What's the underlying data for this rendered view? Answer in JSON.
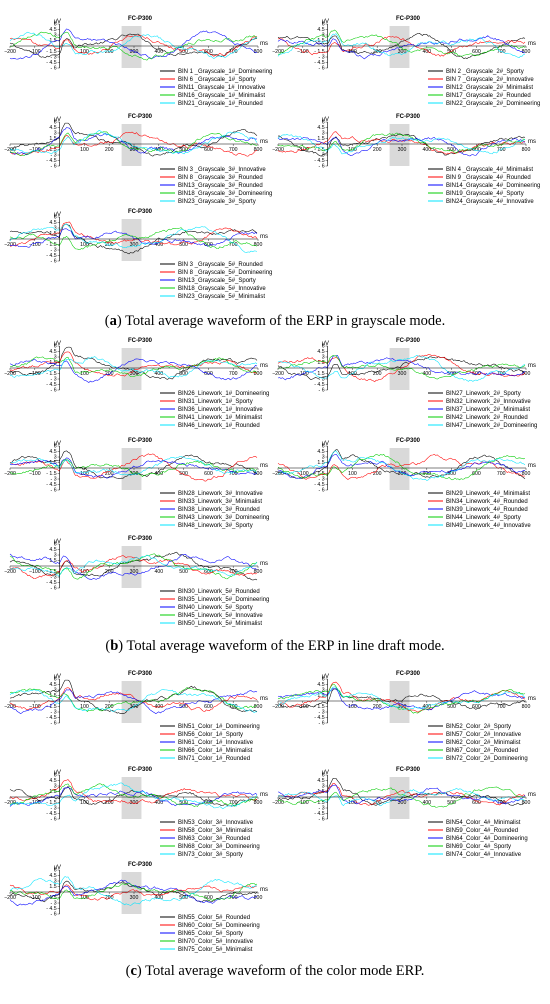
{
  "colors": {
    "series": [
      "#000000",
      "#ff0000",
      "#0000ff",
      "#00cc00",
      "#00e5ff"
    ],
    "highlight": "#d9d9d9"
  },
  "captions": [
    {
      "letter": "a",
      "text": " Total average waveform of the ERP in grayscale mode."
    },
    {
      "letter": "b",
      "text": " Total average waveform of the ERP in line draft mode."
    },
    {
      "letter": "c",
      "text": " Total average waveform of the color mode ERP."
    }
  ],
  "chart_data": [
    {
      "type": "line",
      "group": "a",
      "title": "FC-P300",
      "ylabel": "μV",
      "xlabel": "ms",
      "xlim": [
        -200,
        800
      ],
      "ylim": [
        -6,
        6
      ],
      "x_ticks": [
        -200,
        -100,
        100,
        200,
        300,
        400,
        500,
        600,
        700,
        800
      ],
      "y_ticks": [
        6,
        4.5,
        3,
        1.5,
        -1.5,
        -3,
        -4.5,
        -6
      ],
      "highlight_x": [
        250,
        330
      ],
      "legend": [
        "BIN 1 _Grayscale_1#_Domineering",
        "BIN 6 _Grayscale_1#_Sporty",
        "BIN11_Grayscale_1#_Innovative",
        "BIN16_Grayscale_1#_Minimalist",
        "BIN21_Grayscale_1#_Rounded"
      ]
    },
    {
      "type": "line",
      "group": "a",
      "title": "FC-P300",
      "ylabel": "μV",
      "xlabel": "ms",
      "xlim": [
        -200,
        800
      ],
      "ylim": [
        -6,
        6
      ],
      "x_ticks": [
        -200,
        -100,
        100,
        200,
        300,
        400,
        500,
        600,
        700,
        800
      ],
      "y_ticks": [
        6,
        4.5,
        3,
        1.5,
        -1.5,
        -3,
        -4.5,
        -6
      ],
      "highlight_x": [
        250,
        330
      ],
      "legend": [
        "BIN 2 _Grayscale_2#_Sporty",
        "BIN 7 _Grayscale_2#_Innovative",
        "BIN12_Grayscale_2#_Minimalist",
        "BIN17_Grayscale_2#_Rounded",
        "BIN22_Grayscale_2#_Domineering"
      ]
    },
    {
      "type": "line",
      "group": "a",
      "title": "FC-P300",
      "ylabel": "μV",
      "xlabel": "ms",
      "xlim": [
        -200,
        800
      ],
      "ylim": [
        -6,
        6
      ],
      "x_ticks": [
        -200,
        -100,
        100,
        200,
        300,
        400,
        500,
        600,
        700,
        800
      ],
      "y_ticks": [
        6,
        4.5,
        3,
        1.5,
        -1.5,
        -3,
        -4.5,
        -6
      ],
      "highlight_x": [
        250,
        330
      ],
      "legend": [
        "BIN 3 _Grayscale_3#_Innovative",
        "BIN 8 _Grayscale_3#_Rounded",
        "BIN13_Grayscale_3#_Rounded",
        "BIN18_Grayscale_3#_Domineering",
        "BIN23_Grayscale_3#_Sporty"
      ]
    },
    {
      "type": "line",
      "group": "a",
      "title": "FC-P300",
      "ylabel": "μV",
      "xlabel": "ms",
      "xlim": [
        -200,
        800
      ],
      "ylim": [
        -6,
        6
      ],
      "x_ticks": [
        -200,
        -100,
        100,
        200,
        300,
        400,
        500,
        600,
        700,
        800
      ],
      "y_ticks": [
        6,
        4.5,
        3,
        1.5,
        -1.5,
        -3,
        -4.5,
        -6
      ],
      "highlight_x": [
        250,
        330
      ],
      "legend": [
        "BIN 4 _Grayscale_4#_Minimalist",
        "BIN 9 _Grayscale_4#_Rounded",
        "BIN14_Grayscale_4#_Domineering",
        "BIN19_Grayscale_4#_Sporty",
        "BIN24_Grayscale_4#_Innovative"
      ]
    },
    {
      "type": "line",
      "group": "a",
      "title": "FC-P300",
      "ylabel": "μV",
      "xlabel": "ms",
      "xlim": [
        -200,
        800
      ],
      "ylim": [
        -6,
        6
      ],
      "x_ticks": [
        -200,
        -100,
        100,
        200,
        300,
        400,
        500,
        600,
        700,
        800
      ],
      "y_ticks": [
        6,
        4.5,
        3,
        1.5,
        -1.5,
        -3,
        -4.5,
        -6
      ],
      "highlight_x": [
        250,
        330
      ],
      "legend": [
        "BIN 3 _Grayscale_5#_Rounded",
        "BIN 8 _Grayscale_5#_Domineering",
        "BIN13_Grayscale_5#_Sporty",
        "BIN18_Grayscale_5#_Innovative",
        "BIN23_Grayscale_5#_Minimalist"
      ]
    },
    {
      "type": "line",
      "group": "b",
      "title": "FC-P300",
      "ylabel": "μV",
      "xlabel": "ms",
      "xlim": [
        -200,
        800
      ],
      "ylim": [
        -6,
        6
      ],
      "x_ticks": [
        -200,
        -100,
        100,
        200,
        300,
        400,
        500,
        600,
        700,
        800
      ],
      "y_ticks": [
        6,
        4.5,
        3,
        1.5,
        -1.5,
        -3,
        -4.5,
        -6
      ],
      "highlight_x": [
        250,
        330
      ],
      "legend": [
        "BIN26_Linework_1#_Domineering",
        "BIN31_Linework_1#_Sporty",
        "BIN36_Linework_1#_Innovative",
        "BIN41_Linework_1#_Minimalist",
        "BIN46_Linework_1#_Rounded"
      ]
    },
    {
      "type": "line",
      "group": "b",
      "title": "FC-P300",
      "ylabel": "μV",
      "xlabel": "ms",
      "xlim": [
        -200,
        800
      ],
      "ylim": [
        -6,
        6
      ],
      "x_ticks": [
        -200,
        -100,
        100,
        200,
        300,
        400,
        500,
        600,
        700,
        800
      ],
      "y_ticks": [
        6,
        4.5,
        3,
        1.5,
        -1.5,
        -3,
        -4.5,
        -6
      ],
      "highlight_x": [
        250,
        330
      ],
      "legend": [
        "BIN27_Linework_2#_Sporty",
        "BIN32_Linework_2#_Innovative",
        "BIN37_Linework_2#_Minimalist",
        "BIN42_Linework_2#_Rounded",
        "BIN47_Linework_2#_Domineering"
      ]
    },
    {
      "type": "line",
      "group": "b",
      "title": "FC-P300",
      "ylabel": "μV",
      "xlabel": "ms",
      "xlim": [
        -200,
        800
      ],
      "ylim": [
        -6,
        6
      ],
      "x_ticks": [
        -200,
        -100,
        100,
        200,
        300,
        400,
        500,
        600,
        700,
        800
      ],
      "y_ticks": [
        6,
        4.5,
        3,
        1.5,
        -1.5,
        -3,
        -4.5,
        -6
      ],
      "highlight_x": [
        250,
        330
      ],
      "legend": [
        "BIN28_Linework_3#_Innovative",
        "BIN33_Linework_3#_Minimalist",
        "BIN38_Linework_3#_Rounded",
        "BIN43_Linework_3#_Domineering",
        "BIN48_Linework_3#_Sporty"
      ]
    },
    {
      "type": "line",
      "group": "b",
      "title": "FC-P300",
      "ylabel": "μV",
      "xlabel": "ms",
      "xlim": [
        -200,
        800
      ],
      "ylim": [
        -6,
        6
      ],
      "x_ticks": [
        -200,
        -100,
        100,
        200,
        300,
        400,
        500,
        600,
        700,
        800
      ],
      "y_ticks": [
        6,
        4.5,
        3,
        1.5,
        -1.5,
        -3,
        -4.5,
        -6
      ],
      "highlight_x": [
        250,
        330
      ],
      "legend": [
        "BIN29_Linework_4#_Minimalist",
        "BIN34_Linework_4#_Rounded",
        "BIN39_Linework_4#_Rounded",
        "BIN44_Linework_4#_Sporty",
        "BIN49_Linework_4#_Innovative"
      ]
    },
    {
      "type": "line",
      "group": "b",
      "title": "FC-P300",
      "ylabel": "μV",
      "xlabel": "ms",
      "xlim": [
        -200,
        800
      ],
      "ylim": [
        -6,
        6
      ],
      "x_ticks": [
        -200,
        -100,
        100,
        200,
        300,
        400,
        500,
        600,
        700,
        800
      ],
      "y_ticks": [
        6,
        4.5,
        3,
        1.5,
        -1.5,
        -3,
        -4.5,
        -6
      ],
      "highlight_x": [
        250,
        330
      ],
      "legend": [
        "BIN30_Linework_5#_Rounded",
        "BIN35_Linework_5#_Domineering",
        "BIN40_Linework_5#_Sporty",
        "BIN45_Linework_5#_Innovative",
        "BIN50_Linework_5#_Minimalist"
      ]
    },
    {
      "type": "line",
      "group": "c",
      "title": "FC-P300",
      "ylabel": "μV",
      "xlabel": "ms",
      "xlim": [
        -200,
        800
      ],
      "ylim": [
        -6,
        6
      ],
      "x_ticks": [
        -200,
        -100,
        100,
        200,
        300,
        400,
        500,
        600,
        700,
        800
      ],
      "y_ticks": [
        6,
        4.5,
        3,
        1.5,
        -1.5,
        -3,
        -4.5,
        -6
      ],
      "highlight_x": [
        250,
        330
      ],
      "legend": [
        "BIN51_Color_1#_Domineering",
        "BIN56_Color_1#_Sporty",
        "BIN61_Color_1#_Innovative",
        "BIN66_Color_1#_Minimalist",
        "BIN71_Color_1#_Rounded"
      ]
    },
    {
      "type": "line",
      "group": "c",
      "title": "FC-P300",
      "ylabel": "μV",
      "xlabel": "ms",
      "xlim": [
        -200,
        800
      ],
      "ylim": [
        -6,
        6
      ],
      "x_ticks": [
        -200,
        -100,
        100,
        200,
        300,
        400,
        500,
        600,
        700,
        800
      ],
      "y_ticks": [
        6,
        4.5,
        3,
        1.5,
        -1.5,
        -3,
        -4.5,
        -6
      ],
      "highlight_x": [
        250,
        330
      ],
      "legend": [
        "BIN52_Color_2#_Sporty",
        "BIN57_Color_2#_Innovative",
        "BIN62_Color_2#_Minimalist",
        "BIN67_Color_2#_Rounded",
        "BIN72_Color_2#_Domineering"
      ]
    },
    {
      "type": "line",
      "group": "c",
      "title": "FC-P300",
      "ylabel": "μV",
      "xlabel": "ms",
      "xlim": [
        -200,
        800
      ],
      "ylim": [
        -6,
        6
      ],
      "x_ticks": [
        -200,
        -100,
        100,
        200,
        300,
        400,
        500,
        600,
        700,
        800
      ],
      "y_ticks": [
        6,
        4.5,
        3,
        1.5,
        -1.5,
        -3,
        -4.5,
        -6
      ],
      "highlight_x": [
        250,
        330
      ],
      "legend": [
        "BIN53_Color_3#_Innovative",
        "BIN58_Color_3#_Minimalist",
        "BIN63_Color_3#_Rounded",
        "BIN68_Color_3#_Domineering",
        "BIN73_Color_3#_Sporty"
      ]
    },
    {
      "type": "line",
      "group": "c",
      "title": "FC-P300",
      "ylabel": "μV",
      "xlabel": "ms",
      "xlim": [
        -200,
        800
      ],
      "ylim": [
        -6,
        6
      ],
      "x_ticks": [
        -200,
        -100,
        100,
        200,
        300,
        400,
        500,
        600,
        700,
        800
      ],
      "y_ticks": [
        6,
        4.5,
        3,
        1.5,
        -1.5,
        -3,
        -4.5,
        -6
      ],
      "highlight_x": [
        250,
        330
      ],
      "legend": [
        "BIN54_Color_4#_Minimalist",
        "BIN59_Color_4#_Rounded",
        "BIN64_Color_4#_Domineering",
        "BIN69_Color_4#_Sporty",
        "BIN74_Color_4#_Innovative"
      ]
    },
    {
      "type": "line",
      "group": "c",
      "title": "FC-P300",
      "ylabel": "μV",
      "xlabel": "ms",
      "xlim": [
        -200,
        800
      ],
      "ylim": [
        -6,
        6
      ],
      "x_ticks": [
        -200,
        -100,
        100,
        200,
        300,
        400,
        500,
        600,
        700,
        800
      ],
      "y_ticks": [
        6,
        4.5,
        3,
        1.5,
        -1.5,
        -3,
        -4.5,
        -6
      ],
      "highlight_x": [
        250,
        330
      ],
      "legend": [
        "BIN55_Color_5#_Rounded",
        "BIN60_Color_5#_Domineering",
        "BIN65_Color_5#_Sporty",
        "BIN70_Color_5#_Innovative",
        "BIN75_Color_5#_Minimalist"
      ]
    }
  ]
}
